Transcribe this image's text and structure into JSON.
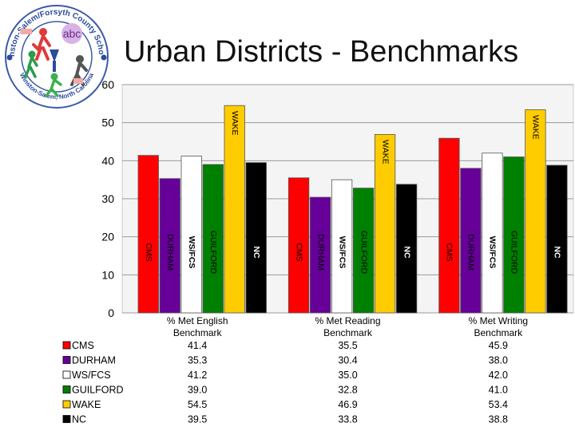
{
  "slide": {
    "title": "Urban Districts - Benchmarks",
    "logo": {
      "ring_text": "Winston-Salem/Forsyth County Schools",
      "bottom_text": "Winston-Salem, North Carolina",
      "badge_text": "abc"
    }
  },
  "chart_data": {
    "type": "bar",
    "categories": [
      "% Met English Benchmark",
      "% Met Reading Benchmark",
      "% Met Writing Benchmark"
    ],
    "category_lines": [
      [
        "% Met English",
        "Benchmark"
      ],
      [
        "% Met Reading",
        "Benchmark"
      ],
      [
        "% Met Writing",
        "Benchmark"
      ]
    ],
    "series": [
      {
        "name": "CMS",
        "values": [
          41.4,
          35.5,
          45.9
        ],
        "color": "#ff0000",
        "text_color": "#000000"
      },
      {
        "name": "DURHAM",
        "values": [
          35.3,
          30.4,
          38.0
        ],
        "color": "#660099",
        "text_color": "#000000"
      },
      {
        "name": "WS/FCS",
        "values": [
          41.2,
          35.0,
          42.0
        ],
        "color": "#ffffff",
        "text_color": "#000000"
      },
      {
        "name": "GUILFORD",
        "values": [
          39.0,
          32.8,
          41.0
        ],
        "color": "#008000",
        "text_color": "#000000"
      },
      {
        "name": "WAKE",
        "values": [
          54.5,
          46.9,
          53.4
        ],
        "color": "#ffcc00",
        "text_color": "#000000"
      },
      {
        "name": "NC",
        "values": [
          39.5,
          33.8,
          38.8
        ],
        "color": "#000000",
        "text_color": "#ffffff"
      }
    ],
    "display_values": [
      [
        "41.4",
        "35.5",
        "45.9"
      ],
      [
        "35.3",
        "30.4",
        "38.0"
      ],
      [
        "41.2",
        "35.0",
        "42.0"
      ],
      [
        "39.0",
        "32.8",
        "41.0"
      ],
      [
        "54.5",
        "46.9",
        "53.4"
      ],
      [
        "39.5",
        "33.8",
        "38.8"
      ]
    ],
    "y_ticks": [
      "0",
      "10",
      "20",
      "30",
      "40",
      "50",
      "60"
    ],
    "ylim": [
      0,
      60
    ],
    "grid": true,
    "legend": "data-table"
  }
}
